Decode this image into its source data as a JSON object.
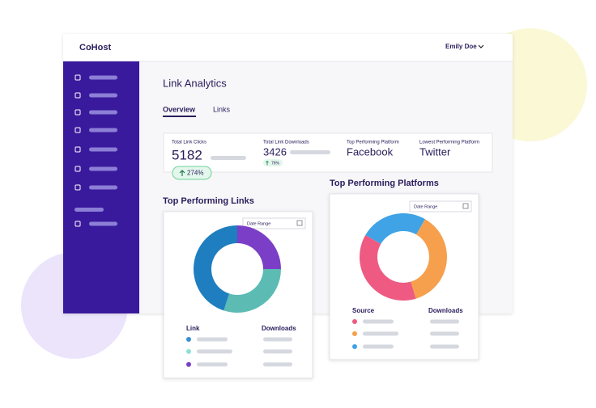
{
  "header": {
    "logo": "CoHost",
    "user": "Emily Doe"
  },
  "page": {
    "title": "Link Analytics",
    "tabs": [
      "Overview",
      "Links"
    ]
  },
  "stats": [
    {
      "label": "Total Link Clicks",
      "value": "5182",
      "change": "274%"
    },
    {
      "label": "Total Link Downloads",
      "value": "3426",
      "change": "76%"
    },
    {
      "label": "Top Performing Platform",
      "value": "Facebook"
    },
    {
      "label": "Lowest Performing Platform",
      "value": "Twitter"
    }
  ],
  "links_card": {
    "title": "Top Performing Links",
    "date_placeholder": "Date Range",
    "chart": {
      "type": "donut",
      "values": [
        25,
        30,
        45
      ],
      "colors": [
        "#7a3fc6",
        "#5cbcb4",
        "#1e7ec0"
      ]
    },
    "columns": [
      "Link",
      "Downloads"
    ],
    "legend_colors": [
      "#3a8fd0",
      "#8ee0d6",
      "#7a3fc6"
    ]
  },
  "platforms_card": {
    "title": "Top Performing Platforms",
    "date_placeholder": "Date Range",
    "chart": {
      "type": "donut",
      "values": [
        25,
        37,
        38
      ],
      "colors": [
        "#3fa3e6",
        "#f6a04d",
        "#ee5a82"
      ]
    },
    "columns": [
      "Source",
      "Downloads"
    ],
    "legend_colors": [
      "#ee5a82",
      "#f6a04d",
      "#3fa3e6"
    ]
  }
}
